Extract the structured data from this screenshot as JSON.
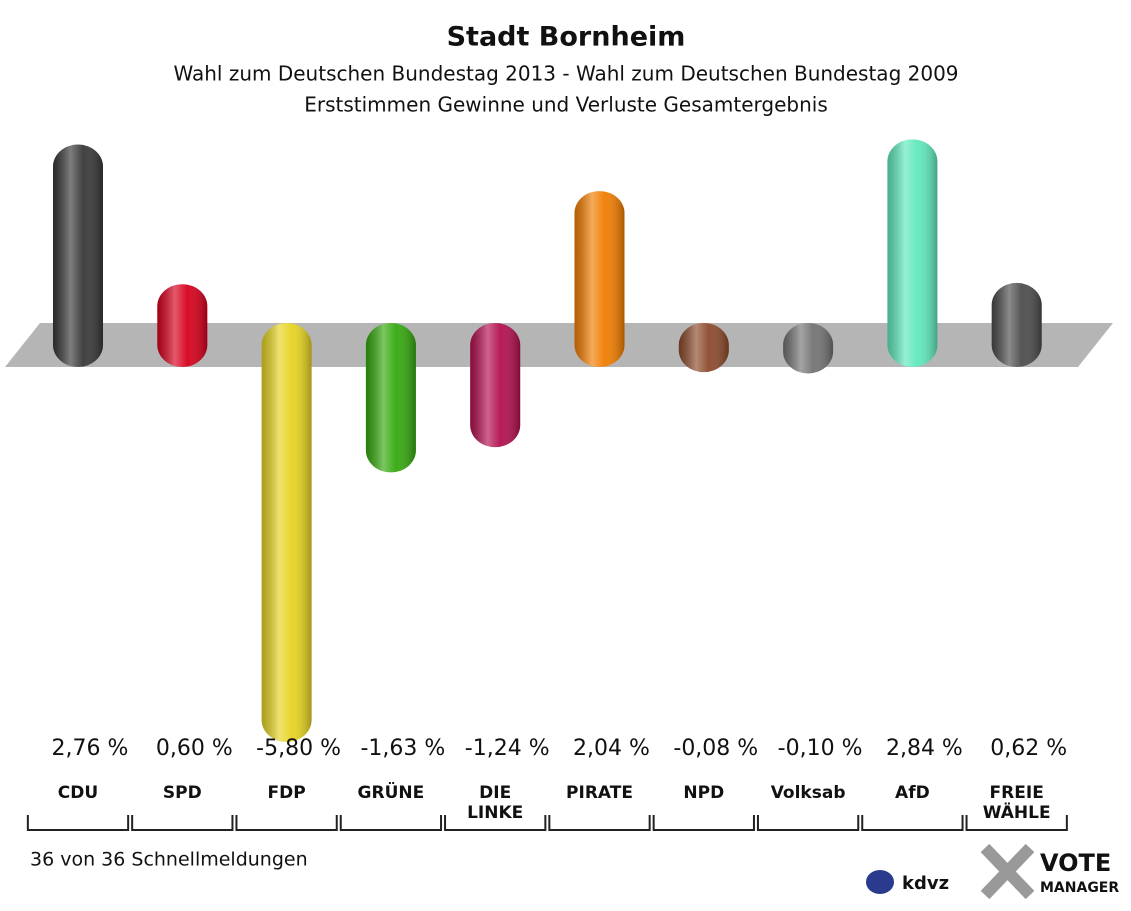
{
  "chart_data": {
    "type": "bar",
    "title": "Stadt Bornheim",
    "subtitle": "Wahl zum Deutschen Bundestag 2013 - Wahl zum Deutschen Bundestag 2009",
    "subtitle2": "Erststimmen Gewinne und Verluste Gesamtergebnis",
    "categories": [
      "CDU",
      "SPD",
      "FDP",
      "GRÜNE",
      "DIE LINKE",
      "PIRATE",
      "NPD",
      "Volksab",
      "AfD",
      "FREIE WÄHLE"
    ],
    "values": [
      2.76,
      0.6,
      -5.8,
      -1.63,
      -1.24,
      2.04,
      -0.08,
      -0.1,
      2.84,
      0.62
    ],
    "value_labels": [
      "2,76 %",
      "0,60 %",
      "-5,80 %",
      "-1,63 %",
      "-1,24 %",
      "2,04 %",
      "-0,08 %",
      "-0,10 %",
      "2,84 %",
      "0,62 %"
    ],
    "colors": [
      "#383838",
      "#d6001c",
      "#e6d322",
      "#34a80e",
      "#b3104f",
      "#f07d00",
      "#8c4a2c",
      "#737373",
      "#5fe8bd",
      "#4c4c4c"
    ],
    "footer": "36 von 36 Schnellmeldungen",
    "logo_left": "kdvz",
    "logo_right": "VOTE",
    "logo_right2": "MANAGER"
  }
}
